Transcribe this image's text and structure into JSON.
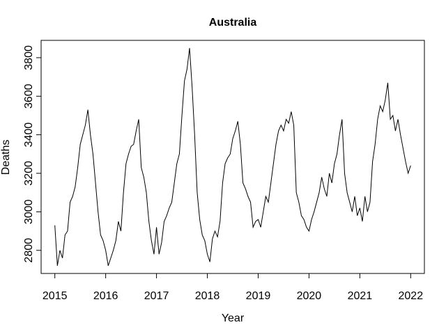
{
  "chart_data": {
    "type": "line",
    "title": "Australia",
    "x_label": "Year",
    "y_label": "Deaths",
    "x": [
      2015.0,
      2015.05,
      2015.1,
      2015.15,
      2015.2,
      2015.25,
      2015.3,
      2015.35,
      2015.4,
      2015.45,
      2015.5,
      2015.55,
      2015.6,
      2015.65,
      2015.7,
      2015.75,
      2015.8,
      2015.85,
      2015.9,
      2015.95,
      2016.0,
      2016.05,
      2016.1,
      2016.15,
      2016.2,
      2016.25,
      2016.3,
      2016.35,
      2016.4,
      2016.45,
      2016.5,
      2016.55,
      2016.6,
      2016.65,
      2016.7,
      2016.75,
      2016.8,
      2016.85,
      2016.9,
      2016.95,
      2017.0,
      2017.05,
      2017.1,
      2017.15,
      2017.2,
      2017.25,
      2017.3,
      2017.35,
      2017.4,
      2017.45,
      2017.5,
      2017.55,
      2017.6,
      2017.65,
      2017.7,
      2017.75,
      2017.8,
      2017.85,
      2017.9,
      2017.95,
      2018.0,
      2018.05,
      2018.1,
      2018.15,
      2018.2,
      2018.25,
      2018.3,
      2018.35,
      2018.4,
      2018.45,
      2018.5,
      2018.55,
      2018.6,
      2018.65,
      2018.7,
      2018.75,
      2018.8,
      2018.85,
      2018.9,
      2018.95,
      2019.0,
      2019.05,
      2019.1,
      2019.15,
      2019.2,
      2019.25,
      2019.3,
      2019.35,
      2019.4,
      2019.45,
      2019.5,
      2019.55,
      2019.6,
      2019.65,
      2019.7,
      2019.75,
      2019.8,
      2019.85,
      2019.9,
      2019.95,
      2020.0,
      2020.05,
      2020.1,
      2020.15,
      2020.2,
      2020.25,
      2020.3,
      2020.35,
      2020.4,
      2020.45,
      2020.5,
      2020.55,
      2020.6,
      2020.65,
      2020.7,
      2020.75,
      2020.8,
      2020.85,
      2020.9,
      2020.95,
      2021.0,
      2021.05,
      2021.1,
      2021.15,
      2021.2,
      2021.25,
      2021.3,
      2021.35,
      2021.4,
      2021.45,
      2021.5,
      2021.55,
      2021.6,
      2021.65,
      2021.7,
      2021.75,
      2021.8,
      2021.85,
      2021.9,
      2021.95,
      2022.0
    ],
    "values": [
      2930,
      2720,
      2800,
      2760,
      2880,
      2900,
      3050,
      3080,
      3130,
      3230,
      3350,
      3400,
      3450,
      3530,
      3400,
      3300,
      3150,
      3000,
      2880,
      2850,
      2800,
      2720,
      2760,
      2800,
      2850,
      2950,
      2900,
      3100,
      3250,
      3300,
      3340,
      3350,
      3420,
      3480,
      3230,
      3180,
      3100,
      2950,
      2850,
      2780,
      2920,
      2780,
      2840,
      2950,
      2980,
      3020,
      3050,
      3150,
      3250,
      3300,
      3500,
      3680,
      3740,
      3850,
      3650,
      3400,
      3100,
      2960,
      2880,
      2850,
      2780,
      2740,
      2860,
      2900,
      2870,
      2950,
      3150,
      3250,
      3280,
      3300,
      3380,
      3420,
      3470,
      3350,
      3150,
      3120,
      3080,
      3050,
      2920,
      2950,
      2960,
      2920,
      3000,
      3080,
      3050,
      3150,
      3250,
      3350,
      3420,
      3450,
      3420,
      3480,
      3460,
      3520,
      3450,
      3100,
      3050,
      2980,
      2960,
      2920,
      2900,
      2960,
      3000,
      3050,
      3100,
      3180,
      3120,
      3080,
      3200,
      3150,
      3250,
      3300,
      3400,
      3480,
      3200,
      3100,
      3050,
      3000,
      3080,
      2980,
      3020,
      2950,
      3080,
      3000,
      3050,
      3260,
      3350,
      3480,
      3550,
      3520,
      3580,
      3670,
      3480,
      3500,
      3420,
      3480,
      3400,
      3330,
      3260,
      3200,
      3240
    ],
    "color": "#000000",
    "xlim": [
      2014.73,
      2022.27
    ],
    "ylim": [
      2680,
      3890
    ],
    "xticks": [
      2015,
      2016,
      2017,
      2018,
      2019,
      2020,
      2021,
      2022
    ],
    "yticks": [
      2800,
      3000,
      3200,
      3400,
      3600,
      3800
    ]
  }
}
